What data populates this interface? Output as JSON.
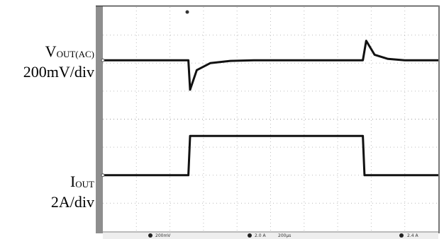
{
  "labels": {
    "vout": {
      "main": "V",
      "sub": "OUT(AC)",
      "scale": "200mV/div"
    },
    "iout": {
      "main": "I",
      "sub": "OUT",
      "scale": "2A/div"
    }
  },
  "status_bar": {
    "ch1": "200mV",
    "ch2": "2.0 A",
    "timebase": "200µs",
    "trigger": "2.4 A"
  },
  "chart_data": {
    "type": "line",
    "title": "",
    "xlabel": "",
    "ylabel": "",
    "x_unit": "div",
    "xlim": [
      0,
      10
    ],
    "ylim": [
      -4,
      4
    ],
    "grid": true,
    "series": [
      {
        "name": "VOUT(AC)",
        "scale": "200mV/div",
        "color": "#111111",
        "points": [
          [
            0,
            2.1
          ],
          [
            2.55,
            2.1
          ],
          [
            2.6,
            1.05
          ],
          [
            2.8,
            1.75
          ],
          [
            3.2,
            2.0
          ],
          [
            3.8,
            2.08
          ],
          [
            4.5,
            2.1
          ],
          [
            7.75,
            2.1
          ],
          [
            7.85,
            2.8
          ],
          [
            8.1,
            2.3
          ],
          [
            8.5,
            2.15
          ],
          [
            9.0,
            2.1
          ],
          [
            10,
            2.1
          ]
        ]
      },
      {
        "name": "IOUT",
        "scale": "2A/div",
        "color": "#111111",
        "points": [
          [
            0,
            -2.0
          ],
          [
            2.55,
            -2.0
          ],
          [
            2.6,
            -0.6
          ],
          [
            7.75,
            -0.6
          ],
          [
            7.8,
            -2.0
          ],
          [
            10,
            -2.0
          ]
        ]
      }
    ]
  }
}
